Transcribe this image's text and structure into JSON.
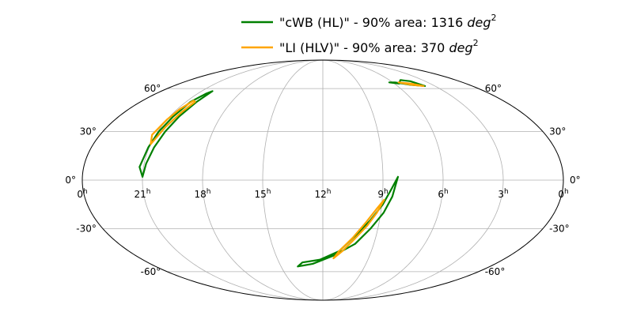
{
  "chart_data": {
    "type": "sky map",
    "projection": "mollweide",
    "grid": true,
    "legend_placement": "top-center",
    "legend": [
      {
        "label_prefix": "\"cWB (HL)\" - 90% area: 1316 ",
        "unit_base": "deg",
        "unit_exp": "2",
        "color": "#008000"
      },
      {
        "label_prefix": "\"LI (HLV)\" - 90% area: 370 ",
        "unit_base": "deg",
        "unit_exp": "2",
        "color": "#FFA500"
      }
    ],
    "ra_ticks": [
      {
        "hour": 24,
        "text": "0",
        "sup": "h"
      },
      {
        "hour": 21,
        "text": "21",
        "sup": "h"
      },
      {
        "hour": 18,
        "text": "18",
        "sup": "h"
      },
      {
        "hour": 15,
        "text": "15",
        "sup": "h"
      },
      {
        "hour": 12,
        "text": "12",
        "sup": "h"
      },
      {
        "hour": 9,
        "text": "9",
        "sup": "h"
      },
      {
        "hour": 6,
        "text": "6",
        "sup": "h"
      },
      {
        "hour": 3,
        "text": "3",
        "sup": "h"
      },
      {
        "hour": 0,
        "text": "0",
        "sup": "h"
      }
    ],
    "dec_ticks_left": [
      {
        "dec": 60,
        "text": "60°"
      },
      {
        "dec": 30,
        "text": "30°"
      },
      {
        "dec": 0,
        "text": "0°"
      },
      {
        "dec": -30,
        "text": "-30°"
      },
      {
        "dec": -60,
        "text": "-60°"
      }
    ],
    "dec_ticks_right": [
      {
        "dec": 60,
        "text": "60°"
      },
      {
        "dec": 30,
        "text": "30°"
      },
      {
        "dec": 0,
        "text": "0°"
      },
      {
        "dec": -30,
        "text": "-30°"
      },
      {
        "dec": -60,
        "text": "-60°"
      }
    ],
    "series": [
      {
        "color": "#008000",
        "regions": [
          {
            "ra_hours": [
              20.2,
              20.3,
              20.45,
              20.6,
              20.75,
              20.9,
              21.0,
              21.2,
              21.05,
              20.95,
              20.8,
              20.7,
              20.4,
              20.2
            ],
            "dec_deg": [
              58,
              50,
              40,
              30,
              20,
              10,
              2,
              8,
              20,
              30,
              40,
              50,
              56,
              58
            ]
          },
          {
            "ra_hours": [
              5.6,
              5.0,
              4.3,
              3.8,
              4.8,
              5.8,
              6.3,
              5.6
            ],
            "dec_deg": [
              64,
              67,
              66,
              62,
              63,
              65,
              65,
              64
            ]
          },
          {
            "ra_hours": [
              8.25,
              8.5,
              8.85,
              9.4,
              10.1,
              11.3,
              12.7,
              13.8,
              13.4,
              12.2,
              11.0,
              10.2,
              9.5,
              8.95,
              8.55,
              8.25
            ],
            "dec_deg": [
              2,
              -10,
              -20,
              -30,
              -40,
              -48,
              -54,
              -56,
              -53,
              -51,
              -45,
              -35,
              -25,
              -15,
              -5,
              2
            ]
          }
        ]
      },
      {
        "color": "#FFA500",
        "regions": [
          {
            "ra_hours": [
              20.4,
              20.55,
              20.75,
              21.0,
              21.2,
              21.0,
              20.85,
              20.6,
              20.4
            ],
            "dec_deg": [
              50,
              43,
              33,
              22,
              28,
              38,
              45,
              51,
              50
            ]
          },
          {
            "ra_hours": [
              5.5,
              4.6,
              3.9,
              4.7,
              5.5
            ],
            "dec_deg": [
              65,
              64,
              62,
              63,
              65
            ]
          },
          {
            "ra_hours": [
              8.9,
              9.2,
              9.6,
              10.2,
              10.8,
              11.3,
              11.0,
              10.3,
              9.7,
              9.2,
              8.9
            ],
            "dec_deg": [
              -12,
              -20,
              -28,
              -37,
              -45,
              -50,
              -45,
              -36,
              -26,
              -17,
              -12
            ]
          }
        ]
      }
    ]
  }
}
